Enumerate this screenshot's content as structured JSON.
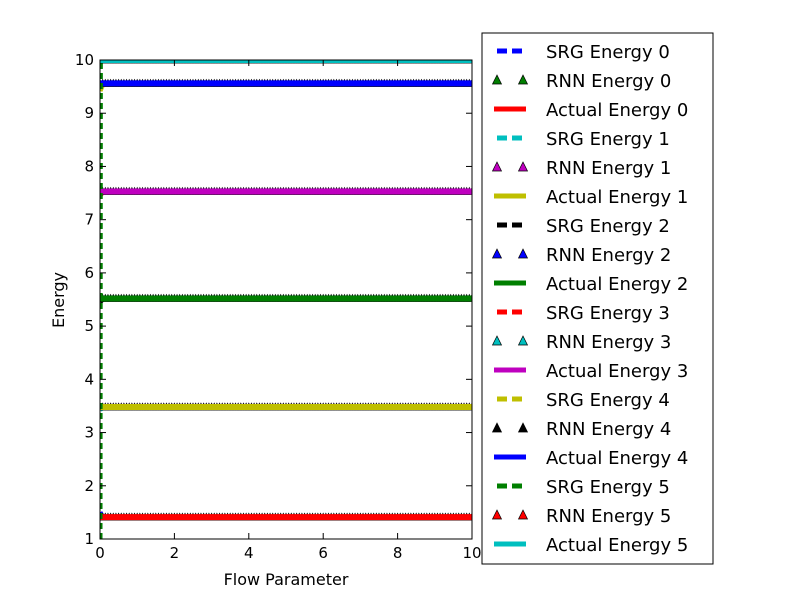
{
  "chart_data": {
    "type": "line",
    "xlabel": "Flow Parameter",
    "ylabel": "Energy",
    "xlim": [
      0,
      10
    ],
    "ylim": [
      1,
      10
    ],
    "xticks": [
      0,
      2,
      4,
      6,
      8,
      10
    ],
    "yticks": [
      1,
      2,
      3,
      4,
      5,
      6,
      7,
      8,
      9,
      10
    ],
    "grid": false,
    "legend_position": "outside-right",
    "series": [
      {
        "name": "SRG Energy 0",
        "kind": "srg",
        "color": "#0000ff",
        "x": [
          0,
          0.05,
          0.1,
          0.2,
          0.3,
          10
        ],
        "y": [
          1.5,
          1.44,
          1.42,
          1.41,
          1.41,
          1.41
        ]
      },
      {
        "name": "RNN Energy 0",
        "kind": "rnn",
        "color": "#007f00",
        "x": [
          0,
          10
        ],
        "y": [
          1.41,
          1.41
        ]
      },
      {
        "name": "Actual Energy 0",
        "kind": "actual",
        "color": "#ff0000",
        "x": [
          0,
          10
        ],
        "y": [
          1.41,
          1.41
        ]
      },
      {
        "name": "SRG Energy 1",
        "kind": "srg",
        "color": "#00bfbf",
        "x": [
          0,
          0.05,
          0.1,
          0.2,
          0.3,
          10
        ],
        "y": [
          3.43,
          3.46,
          3.47,
          3.48,
          3.48,
          3.48
        ]
      },
      {
        "name": "RNN Energy 1",
        "kind": "rnn",
        "color": "#bf00bf",
        "x": [
          0,
          10
        ],
        "y": [
          3.48,
          3.48
        ]
      },
      {
        "name": "Actual Energy 1",
        "kind": "actual",
        "color": "#bfbf00",
        "x": [
          0,
          10
        ],
        "y": [
          3.48,
          3.48
        ]
      },
      {
        "name": "SRG Energy 2",
        "kind": "srg",
        "color": "#000000",
        "x": [
          0,
          0.05,
          0.1,
          0.2,
          0.3,
          10
        ],
        "y": [
          5.45,
          5.49,
          5.51,
          5.52,
          5.52,
          5.52
        ]
      },
      {
        "name": "RNN Energy 2",
        "kind": "rnn",
        "color": "#0000ff",
        "x": [
          0,
          10
        ],
        "y": [
          5.52,
          5.52
        ]
      },
      {
        "name": "Actual Energy 2",
        "kind": "actual",
        "color": "#007f00",
        "x": [
          0,
          10
        ],
        "y": [
          5.52,
          5.52
        ]
      },
      {
        "name": "SRG Energy 3",
        "kind": "srg",
        "color": "#ff0000",
        "x": [
          0,
          0.05,
          0.1,
          0.2,
          0.3,
          10
        ],
        "y": [
          7.45,
          7.5,
          7.52,
          7.53,
          7.53,
          7.53
        ]
      },
      {
        "name": "RNN Energy 3",
        "kind": "rnn",
        "color": "#00bfbf",
        "x": [
          0,
          10
        ],
        "y": [
          7.53,
          7.53
        ]
      },
      {
        "name": "Actual Energy 3",
        "kind": "actual",
        "color": "#bf00bf",
        "x": [
          0,
          10
        ],
        "y": [
          7.53,
          7.53
        ]
      },
      {
        "name": "SRG Energy 4",
        "kind": "srg",
        "color": "#bfbf00",
        "x": [
          0,
          0.05,
          0.1,
          0.2,
          0.3,
          10
        ],
        "y": [
          9.42,
          9.5,
          9.53,
          9.55,
          9.56,
          9.56
        ]
      },
      {
        "name": "RNN Energy 4",
        "kind": "rnn",
        "color": "#000000",
        "x": [
          0,
          10
        ],
        "y": [
          9.56,
          9.56
        ]
      },
      {
        "name": "Actual Energy 4",
        "kind": "actual",
        "color": "#0000ff",
        "x": [
          0,
          10
        ],
        "y": [
          9.56,
          9.56
        ]
      },
      {
        "name": "SRG Energy 5",
        "kind": "srg",
        "color": "#007f00",
        "x": [
          0,
          0.01,
          10
        ],
        "y": [
          1,
          10,
          10
        ]
      },
      {
        "name": "RNN Energy 5",
        "kind": "rnn",
        "color": "#ff0000",
        "x": [
          0,
          10
        ],
        "y": [
          10,
          10
        ]
      },
      {
        "name": "Actual Energy 5",
        "kind": "actual",
        "color": "#00bfbf",
        "x": [
          0,
          10
        ],
        "y": [
          10,
          10
        ]
      }
    ]
  }
}
